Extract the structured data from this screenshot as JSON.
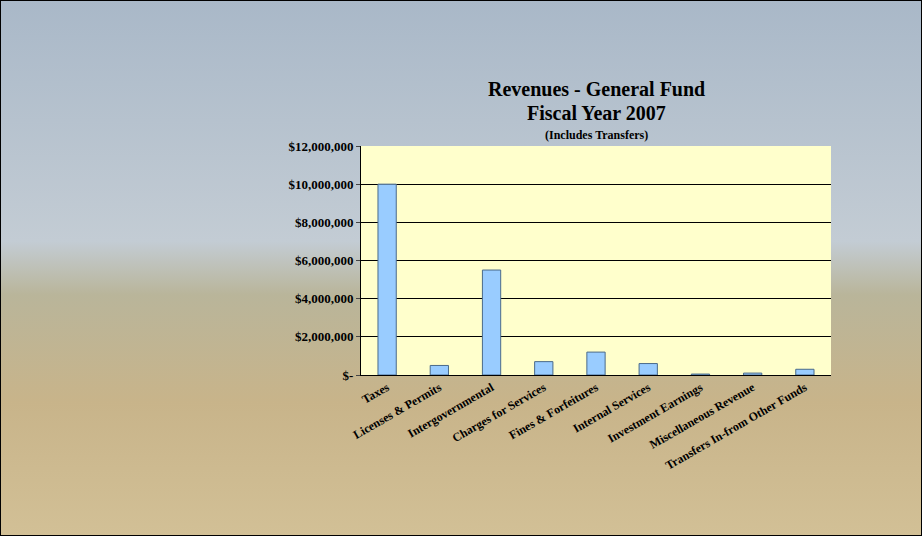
{
  "chart_data": {
    "type": "bar",
    "title": "Revenues - General Fund",
    "subtitle": "Fiscal Year 2007",
    "annotations": [
      "(Includes Transfers)"
    ],
    "categories": [
      "Taxes",
      "Licenses & Permits",
      "Intergovernmental",
      "Charges for Services",
      "Fines & Forfeitures",
      "Internal Services",
      "Investment Earnings",
      "Miscellaneous Revenue",
      "Transfers In-from Other Funds"
    ],
    "values": [
      10000000,
      500000,
      5500000,
      700000,
      1200000,
      600000,
      50000,
      100000,
      300000
    ],
    "color": "#99ccff",
    "ylim": [
      0,
      12000000
    ],
    "yticks": [
      {
        "value": 0,
        "label": "$-"
      },
      {
        "value": 2000000,
        "label": "$2,000,000"
      },
      {
        "value": 4000000,
        "label": "$4,000,000"
      },
      {
        "value": 6000000,
        "label": "$6,000,000"
      },
      {
        "value": 8000000,
        "label": "$8,000,000"
      },
      {
        "value": 10000000,
        "label": "$10,000,000"
      },
      {
        "value": 12000000,
        "label": "$12,000,000"
      }
    ],
    "grid": true
  }
}
